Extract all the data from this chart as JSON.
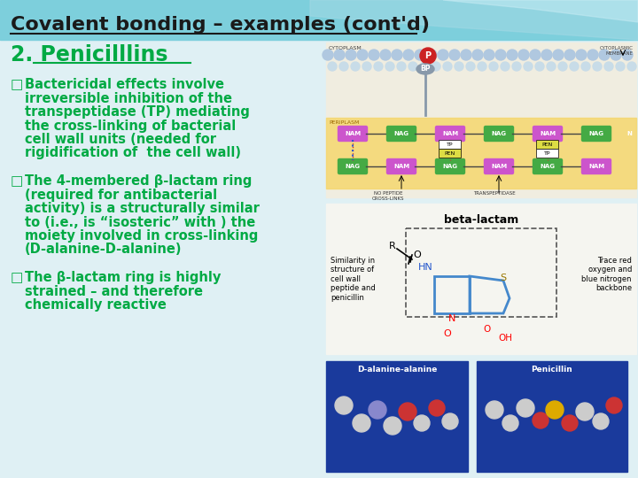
{
  "title": "Covalent bonding – examples (cont'd)",
  "title_color": "#1a1a1a",
  "title_fontsize": 16,
  "section_heading": "2. Penicilllins",
  "section_heading_color": "#00aa44",
  "section_heading_fontsize": 17,
  "bullet_color": "#00aa44",
  "bullet_fontsize": 10.5,
  "bullet_marker": "□",
  "bullets": [
    "Bactericidal effects involve\nirreversible inhibition of the\ntranspeptidase (TP) mediating\nthe cross-linking of bacterial\ncell wall units (needed for\nrigidification of  the cell wall)",
    "The 4-membered β-lactam ring\n(required for antibacterial\nactivity) is a structurally similar\nto (i.e., is “isosteric” with ) the\nmoiety involved in cross-linking\n(D-alanine-D-alanine)",
    "The β-lactam ring is highly\nstrained – and therefore\nchemically reactive"
  ],
  "header_color": "#7dcfdc",
  "body_bg": "#dff0f4",
  "swoosh1_color": "#a0d8e4",
  "swoosh2_color": "#c8ecf4",
  "img1_bg": "#f0ede0",
  "img2_bg": "#f0f0f0",
  "blue_box_color": "#1a3a9c",
  "nam_color": "#cc55cc",
  "nag_color": "#44aa44",
  "periplasm_color": "#f5d76e",
  "membrane_circle_color": "#b0c8e0"
}
